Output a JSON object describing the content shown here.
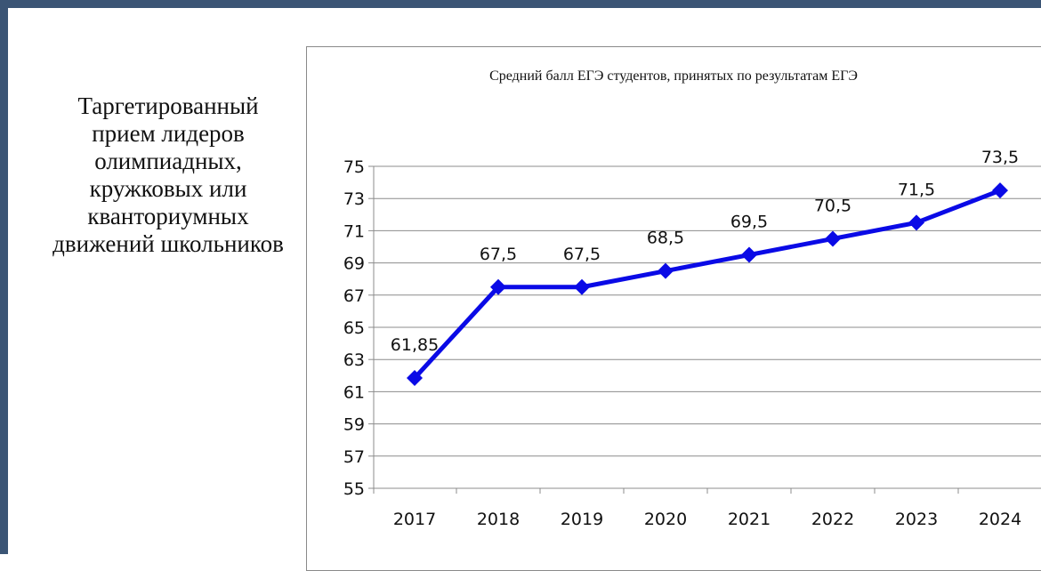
{
  "left_panel": {
    "lines": [
      "Таргетированный",
      "прием лидеров",
      "олимпиадных,",
      "кружковых или",
      "кванториумных",
      "движений школьников"
    ]
  },
  "chart_data": {
    "type": "line",
    "title": "Средний балл ЕГЭ студентов, принятых по результатам ЕГЭ",
    "xlabel": "",
    "ylabel": "",
    "categories": [
      "2017",
      "2018",
      "2019",
      "2020",
      "2021",
      "2022",
      "2023",
      "2024"
    ],
    "series": [
      {
        "values": [
          61.85,
          67.5,
          67.5,
          68.5,
          69.5,
          70.5,
          71.5,
          73.5
        ],
        "labels": [
          "61,85",
          "67,5",
          "67,5",
          "68,5",
          "69,5",
          "70,5",
          "71,5",
          "73,5"
        ],
        "color": "#0a0ae6",
        "marker": "diamond"
      }
    ],
    "ylim": [
      55,
      75
    ],
    "yticks": [
      55,
      57,
      59,
      61,
      63,
      65,
      67,
      69,
      71,
      73,
      75
    ],
    "grid": true,
    "legend": "none",
    "gridline_color": "#8c8c8c"
  }
}
